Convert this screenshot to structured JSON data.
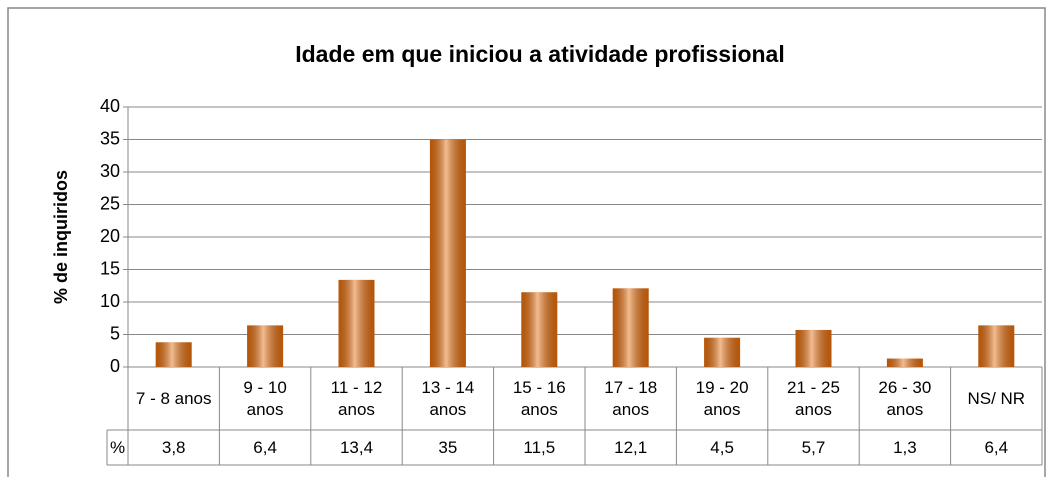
{
  "chart_data": {
    "type": "bar",
    "title": "Idade em que iniciou a atividade profissional",
    "y_label": "% de inquiridos",
    "categories": [
      "7 - 8 anos",
      "9 - 10 anos",
      "11 - 12 anos",
      "13 - 14 anos",
      "15 - 16 anos",
      "17 - 18 anos",
      "19 - 20 anos",
      "21 - 25 anos",
      "26 - 30 anos",
      "NS/ NR"
    ],
    "series": [
      {
        "name": "%",
        "color": "#e46c0a",
        "values": [
          3.8,
          6.4,
          13.4,
          35,
          11.5,
          12.1,
          4.5,
          5.7,
          1.3,
          6.4
        ],
        "value_labels": [
          "3,8",
          "6,4",
          "13,4",
          "35",
          "11,5",
          "12,1",
          "4,5",
          "5,7",
          "1,3",
          "6,4"
        ]
      }
    ],
    "ylim": [
      0,
      40
    ],
    "yticks": [
      0,
      5,
      10,
      15,
      20,
      25,
      30,
      35,
      40
    ],
    "grid": true
  }
}
